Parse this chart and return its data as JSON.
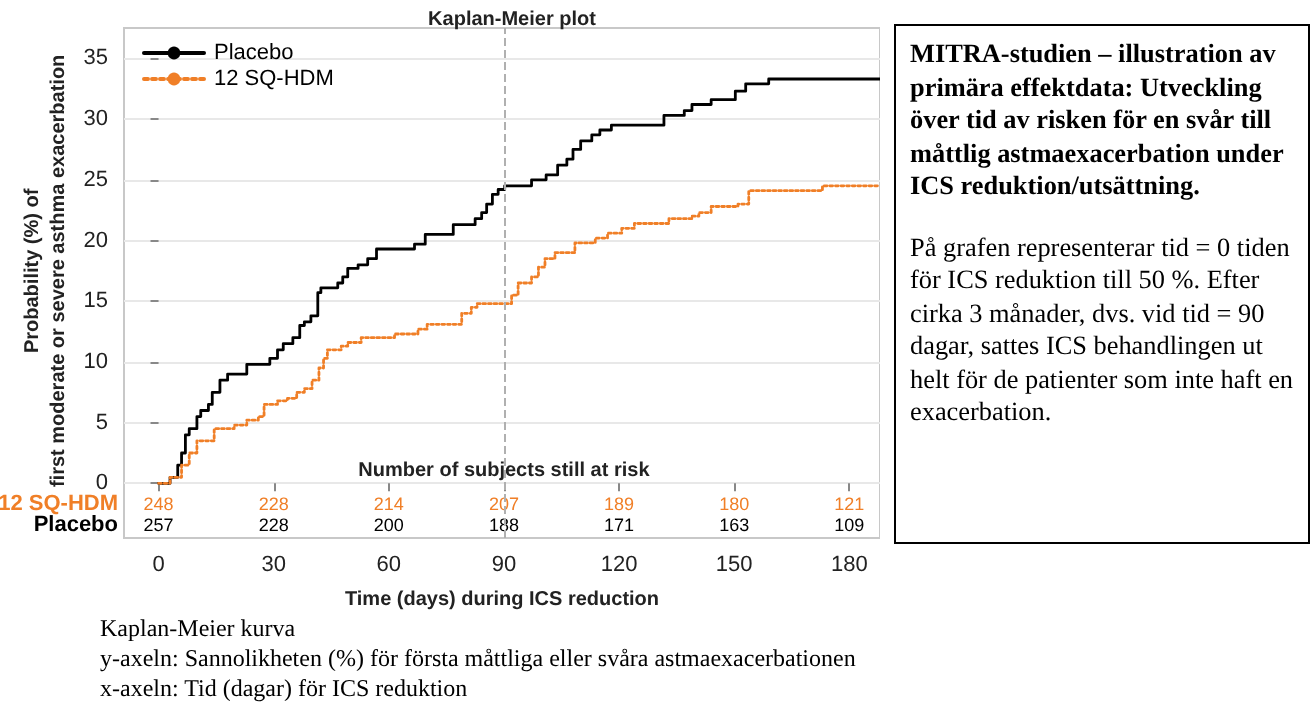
{
  "chart_data": {
    "type": "step",
    "title": "Kaplan-Meier plot",
    "subtitle": "MITRA-studien – illustration av primära effektdata: Utveckling över tid av risken för en svår till måttlig astmaexacerbation under ICS reduktion/utsättning.",
    "xlabel": "Time (days) during ICS reduction",
    "ylabel": "Probability (%) of\nfirst moderate or severe asthma exacerbation",
    "xlim": [
      -9,
      188
    ],
    "xticks": [
      0,
      30,
      60,
      90,
      120,
      150,
      180
    ],
    "ylim": [
      -4.5,
      37.5
    ],
    "yticks": [
      0,
      5,
      10,
      15,
      20,
      25,
      30,
      35
    ],
    "grid": "y",
    "legend": "top left",
    "series": [
      {
        "name": "Placebo",
        "color": "#000000",
        "line_style": "solid",
        "x": [
          0,
          3,
          5,
          6,
          7,
          8,
          10,
          11,
          13,
          14,
          16,
          18,
          23,
          29,
          31,
          32.5,
          35,
          36.8,
          38,
          39.7,
          41.5,
          42.3,
          46.7,
          48,
          49.3,
          52,
          54.5,
          56.8,
          66.7,
          69.5,
          76.8,
          82.5,
          84.2,
          85.5,
          87,
          88.5,
          90.2,
          97.2,
          101,
          104,
          106.4,
          108,
          110,
          112.9,
          115,
          118,
          131.7,
          137,
          139,
          144,
          150.3,
          153,
          159,
          188
        ],
        "values": [
          0,
          0.5,
          1.5,
          2.5,
          4,
          4.5,
          5.5,
          6,
          6.5,
          7.5,
          8.5,
          9,
          9.8,
          10.3,
          11,
          11.5,
          12,
          13,
          13.3,
          13.8,
          15.7,
          16.1,
          16.5,
          17,
          17.7,
          18,
          18.5,
          19.3,
          19.7,
          20.5,
          21.3,
          21.8,
          22.3,
          23,
          23.8,
          24.2,
          24.5,
          25,
          25.4,
          26.2,
          26.7,
          27.5,
          28.2,
          28.7,
          29.1,
          29.5,
          30.3,
          30.7,
          31.2,
          31.6,
          32.3,
          32.9,
          33.3,
          33.3
        ]
      },
      {
        "name": "12 SQ-HDM",
        "color": "#f07f27",
        "line_style": "dotted",
        "x": [
          0,
          3,
          6,
          8,
          10,
          14.5,
          19.7,
          23,
          26,
          27.5,
          31,
          33.6,
          36,
          38,
          40,
          41.8,
          43,
          44,
          47.6,
          49.3,
          52.8,
          61.5,
          67.6,
          70,
          79,
          81.5,
          83,
          92,
          93.7,
          97.2,
          99,
          100.7,
          103.3,
          108.5,
          113.8,
          117,
          120.7,
          124,
          133,
          139,
          140.8,
          144,
          151,
          153.8,
          173,
          188
        ],
        "values": [
          0,
          0.5,
          1.5,
          2.5,
          3.5,
          4.5,
          4.8,
          5.2,
          5.5,
          6.5,
          6.8,
          7,
          7.5,
          7.8,
          8.5,
          9.5,
          10.3,
          11,
          11.3,
          11.6,
          12,
          12.3,
          12.7,
          13.1,
          14,
          14.5,
          14.8,
          15.5,
          16.5,
          17,
          17.8,
          18.5,
          19,
          19.8,
          20.2,
          20.6,
          21,
          21.4,
          21.8,
          22,
          22.3,
          22.8,
          23,
          24.1,
          24.5,
          24.5
        ]
      }
    ],
    "ref_lines": [
      {
        "axis": "x",
        "value": 90,
        "color": "#b0b0b0",
        "line_style": "dashed"
      }
    ],
    "annotations": [
      "På grafen representerar tid = 0 tiden för ICS reduktion till 50 %. Efter cirka 3 månader, dvs. vid tid = 90 dagar, sattes ICS behandlingen ut helt för de patienter som inte haft en exacerbation.",
      "Kaplan-Meier kurva",
      "y-axeln: Sannolikheten (%) för första måttliga eller svåra astmaexacerbationen",
      "x-axeln: Tid (dagar) för ICS reduktion",
      "Number of subjects still at risk",
      "12 SQ-HDM",
      "248",
      "228",
      "214",
      "207",
      "189",
      "180",
      "121",
      "Placebo",
      "257",
      "228",
      "200",
      "188",
      "171",
      "163",
      "109"
    ]
  }
}
